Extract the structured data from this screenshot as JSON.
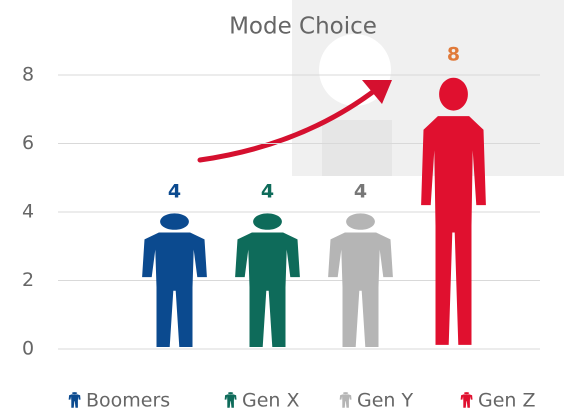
{
  "chart_data": {
    "type": "pictograph",
    "title": "Mode Choice",
    "categories": [
      "Boomers",
      "Gen X",
      "Gen Y",
      "Gen Z"
    ],
    "values": [
      4,
      4,
      4,
      8
    ],
    "colors": [
      "#0b4a8f",
      "#0e6b5a",
      "#b5b5b5",
      "#e0102f"
    ],
    "value_label_colors": [
      "#0b4a8f",
      "#0e6b5a",
      "#777777",
      "#e07a3a"
    ],
    "ylim": [
      0,
      8
    ],
    "yticks": [
      0,
      2,
      4,
      6,
      8
    ],
    "grid": true,
    "legend": "bottom"
  }
}
